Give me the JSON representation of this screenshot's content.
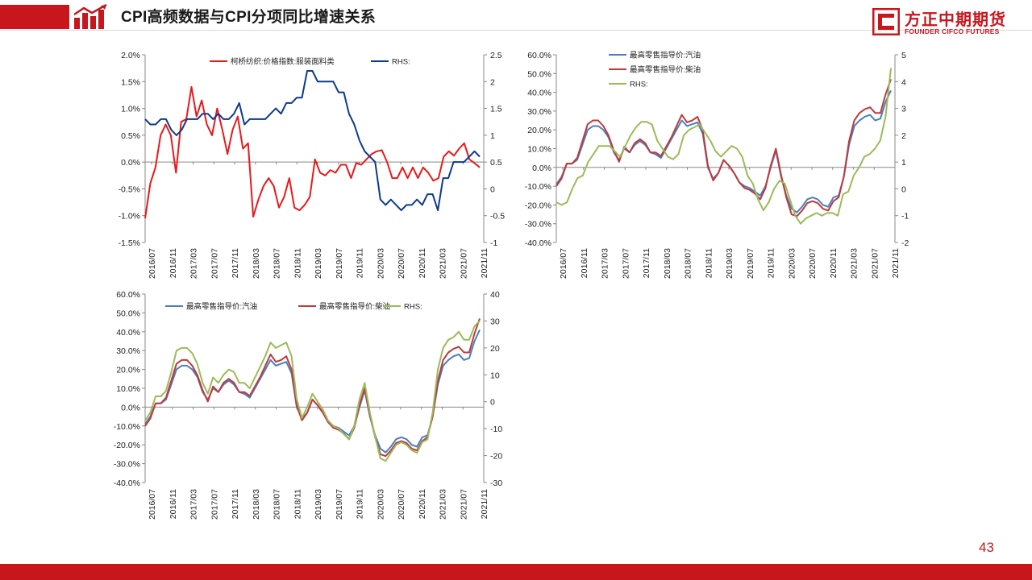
{
  "header": {
    "title": "CPI高频数据与CPI分项同比增速关系",
    "brand_cn": "方正中期期货",
    "brand_en": "FOUNDER CIFCO FUTURES"
  },
  "page_number": "43",
  "colors": {
    "brand": "#c8161d",
    "red_series": "#e8191b",
    "navy_series": "#0d3a8c",
    "blue_series": "#4a7fc1",
    "darkred_series": "#c0393b",
    "green_series": "#9bbb59"
  },
  "chart_data": [
    {
      "type": "line",
      "x_ticks": [
        "2016/07",
        "2016/11",
        "2017/03",
        "2017/07",
        "2017/11",
        "2018/03",
        "2018/07",
        "2018/11",
        "2019/03",
        "2019/07",
        "2019/11",
        "2020/03",
        "2020/07",
        "2020/11",
        "2021/03",
        "2021/07",
        "2021/11"
      ],
      "left_axis": {
        "min": -1.5,
        "max": 2.0,
        "ticks": [
          "-1.5%",
          "-1.0%",
          "-0.5%",
          "0.0%",
          "0.5%",
          "1.0%",
          "1.5%",
          "2.0%"
        ]
      },
      "right_axis": {
        "min": -1,
        "max": 2.5,
        "ticks": [
          "-1",
          "-0.5",
          "0",
          "0.5",
          "1",
          "1.5",
          "2",
          "2.5"
        ]
      },
      "series": [
        {
          "name": "柯桥纺织:价格指数:服装面料类",
          "axis": "left",
          "color": "#e8191b",
          "values": [
            -1.05,
            -0.4,
            -0.1,
            0.5,
            0.7,
            0.5,
            -0.2,
            0.75,
            0.8,
            1.4,
            0.85,
            1.15,
            0.7,
            0.5,
            1.0,
            0.6,
            0.15,
            0.6,
            0.85,
            0.25,
            0.35,
            -1.02,
            -0.7,
            -0.45,
            -0.3,
            -0.45,
            -0.85,
            -0.65,
            -0.3,
            -0.85,
            -0.9,
            -0.8,
            -0.65,
            0.05,
            -0.2,
            -0.25,
            -0.15,
            -0.2,
            -0.05,
            -0.05,
            -0.3,
            -0.02,
            -0.05,
            0.05,
            0.15,
            0.2,
            0.22,
            0.0,
            -0.3,
            -0.3,
            -0.1,
            -0.3,
            -0.1,
            -0.3,
            -0.1,
            -0.2,
            -0.35,
            -0.3,
            0.1,
            0.2,
            0.12,
            0.25,
            0.35,
            0.05,
            -0.02,
            -0.1
          ]
        },
        {
          "name": "RHS:",
          "axis": "right",
          "color": "#0d3a8c",
          "values": [
            1.3,
            1.2,
            1.2,
            1.3,
            1.3,
            1.1,
            1.0,
            1.1,
            1.3,
            1.3,
            1.3,
            1.4,
            1.4,
            1.3,
            1.4,
            1.3,
            1.3,
            1.4,
            1.6,
            1.2,
            1.3,
            1.3,
            1.3,
            1.3,
            1.4,
            1.5,
            1.4,
            1.6,
            1.6,
            1.7,
            1.7,
            2.2,
            2.2,
            2.0,
            2.0,
            2.0,
            2.0,
            1.8,
            1.8,
            1.4,
            1.2,
            0.9,
            0.7,
            0.6,
            0.5,
            -0.2,
            -0.3,
            -0.2,
            -0.3,
            -0.4,
            -0.3,
            -0.3,
            -0.2,
            -0.3,
            -0.1,
            -0.1,
            -0.4,
            0.2,
            0.2,
            0.5,
            0.5,
            0.5,
            0.6,
            0.7,
            0.6
          ]
        }
      ]
    },
    {
      "type": "line",
      "x_ticks": [
        "2016/07",
        "2016/11",
        "2017/03",
        "2017/07",
        "2017/11",
        "2018/03",
        "2018/07",
        "2018/11",
        "2019/03",
        "2019/07",
        "2019/11",
        "2020/03",
        "2020/07",
        "2020/11",
        "2021/03",
        "2021/07",
        "2021/11"
      ],
      "left_axis": {
        "min": -40,
        "max": 60,
        "ticks": [
          "-40.0%",
          "-30.0%",
          "-20.0%",
          "-10.0%",
          "0.0%",
          "10.0%",
          "20.0%",
          "30.0%",
          "40.0%",
          "50.0%",
          "60.0%"
        ]
      },
      "right_axis": {
        "min": -2,
        "max": 5,
        "ticks": [
          "-2",
          "-1",
          "0",
          "1",
          "2",
          "3",
          "4",
          "5"
        ]
      },
      "series": [
        {
          "name": "最高零售指导价:汽油",
          "axis": "left",
          "color": "#4a7fc1",
          "values": [
            -9,
            -5,
            2,
            2,
            4,
            12,
            20,
            22,
            22,
            20,
            16,
            8,
            4,
            10,
            8,
            12,
            14,
            12,
            8,
            7,
            5,
            10,
            15,
            20,
            25,
            22,
            23,
            24,
            18,
            0,
            -6,
            -3,
            4,
            1,
            -3,
            -8,
            -10,
            -11,
            -13,
            -15,
            -10,
            0,
            9,
            -5,
            -15,
            -22,
            -24,
            -21,
            -17,
            -16,
            -17,
            -20,
            -21,
            -16,
            -15,
            -5,
            12,
            22,
            25,
            27,
            28,
            25,
            26,
            35,
            41
          ]
        },
        {
          "name": "最高零售指导价:柴油",
          "axis": "left",
          "color": "#c0393b",
          "values": [
            -10,
            -6,
            2,
            2,
            5,
            14,
            23,
            25,
            25,
            22,
            17,
            9,
            3,
            11,
            8,
            13,
            15,
            13,
            8,
            8,
            6,
            11,
            16,
            22,
            28,
            24,
            25,
            27,
            20,
            1,
            -7,
            -3,
            4,
            1,
            -3,
            -8,
            -11,
            -12,
            -14,
            -17,
            -11,
            1,
            10,
            -4,
            -16,
            -25,
            -26,
            -23,
            -19,
            -18,
            -19,
            -22,
            -23,
            -18,
            -16,
            -5,
            14,
            25,
            29,
            31,
            32,
            29,
            29,
            39,
            47
          ]
        },
        {
          "name": "RHS:",
          "axis": "right",
          "color": "#9bbb59",
          "values": [
            -0.5,
            -0.6,
            -0.5,
            0.0,
            0.4,
            0.5,
            1.0,
            1.3,
            1.6,
            1.6,
            1.6,
            1.4,
            1.2,
            1.6,
            2.0,
            2.3,
            2.5,
            2.5,
            2.4,
            1.8,
            1.5,
            1.2,
            1.1,
            1.3,
            2.0,
            2.2,
            2.3,
            2.4,
            2.1,
            1.8,
            1.4,
            1.2,
            1.4,
            1.6,
            1.5,
            1.2,
            0.5,
            0.2,
            -0.4,
            -0.8,
            -0.5,
            0.0,
            0.3,
            0.2,
            -0.4,
            -1.0,
            -1.3,
            -1.1,
            -1.0,
            -0.9,
            -1.0,
            -0.9,
            -0.9,
            -1.0,
            -0.2,
            -0.1,
            0.5,
            0.8,
            1.2,
            1.3,
            1.5,
            1.8,
            2.7,
            4.5
          ]
        }
      ]
    },
    {
      "type": "line",
      "x_ticks": [
        "2016/07",
        "2016/11",
        "2017/03",
        "2017/07",
        "2017/11",
        "2018/03",
        "2018/07",
        "2018/11",
        "2019/03",
        "2019/07",
        "2019/11",
        "2020/03",
        "2020/07",
        "2020/11",
        "2021/03",
        "2021/07",
        "2021/11"
      ],
      "left_axis": {
        "min": -40,
        "max": 60,
        "ticks": [
          "-40.0%",
          "-30.0%",
          "-20.0%",
          "-10.0%",
          "0.0%",
          "10.0%",
          "20.0%",
          "30.0%",
          "40.0%",
          "50.0%",
          "60.0%"
        ]
      },
      "right_axis": {
        "min": -30,
        "max": 40,
        "ticks": [
          "-30",
          "-20",
          "-10",
          "0",
          "10",
          "20",
          "30",
          "40"
        ]
      },
      "series": [
        {
          "name": "最高零售指导价:汽油",
          "axis": "left",
          "color": "#4a7fc1",
          "values": [
            -9,
            -5,
            2,
            2,
            4,
            12,
            20,
            22,
            22,
            20,
            16,
            8,
            4,
            10,
            8,
            12,
            14,
            12,
            8,
            7,
            5,
            10,
            15,
            20,
            25,
            22,
            23,
            24,
            18,
            0,
            -6,
            -3,
            4,
            1,
            -3,
            -8,
            -10,
            -11,
            -13,
            -15,
            -10,
            0,
            9,
            -5,
            -15,
            -22,
            -24,
            -21,
            -17,
            -16,
            -17,
            -20,
            -21,
            -16,
            -15,
            -5,
            12,
            22,
            25,
            27,
            28,
            25,
            26,
            35,
            41
          ]
        },
        {
          "name": "最高零售指导价:柴油",
          "axis": "left",
          "color": "#c0393b",
          "values": [
            -10,
            -6,
            2,
            2,
            5,
            14,
            23,
            25,
            25,
            22,
            17,
            9,
            3,
            11,
            8,
            13,
            15,
            13,
            8,
            8,
            6,
            11,
            16,
            22,
            28,
            24,
            25,
            27,
            20,
            1,
            -7,
            -3,
            4,
            1,
            -3,
            -8,
            -11,
            -12,
            -14,
            -17,
            -11,
            1,
            10,
            -4,
            -16,
            -25,
            -26,
            -23,
            -19,
            -18,
            -19,
            -22,
            -23,
            -18,
            -16,
            -5,
            14,
            25,
            29,
            31,
            32,
            29,
            29,
            39,
            47
          ]
        },
        {
          "name": "RHS:",
          "axis": "right",
          "color": "#9bbb59",
          "values": [
            -7,
            -4,
            2,
            2,
            4,
            11,
            19,
            20,
            20,
            18,
            14,
            7,
            3,
            9,
            7,
            10,
            12,
            11,
            7,
            7,
            5,
            9,
            13,
            17,
            22,
            20,
            21,
            22,
            17,
            1,
            -6,
            -2,
            3,
            0,
            -3,
            -7,
            -9,
            -10,
            -12,
            -14,
            -9,
            1,
            7,
            -4,
            -13,
            -21,
            -22,
            -19,
            -16,
            -15,
            -16,
            -18,
            -19,
            -15,
            -14,
            -4,
            12,
            20,
            23,
            24,
            26,
            23,
            23,
            28,
            30
          ]
        }
      ]
    }
  ]
}
